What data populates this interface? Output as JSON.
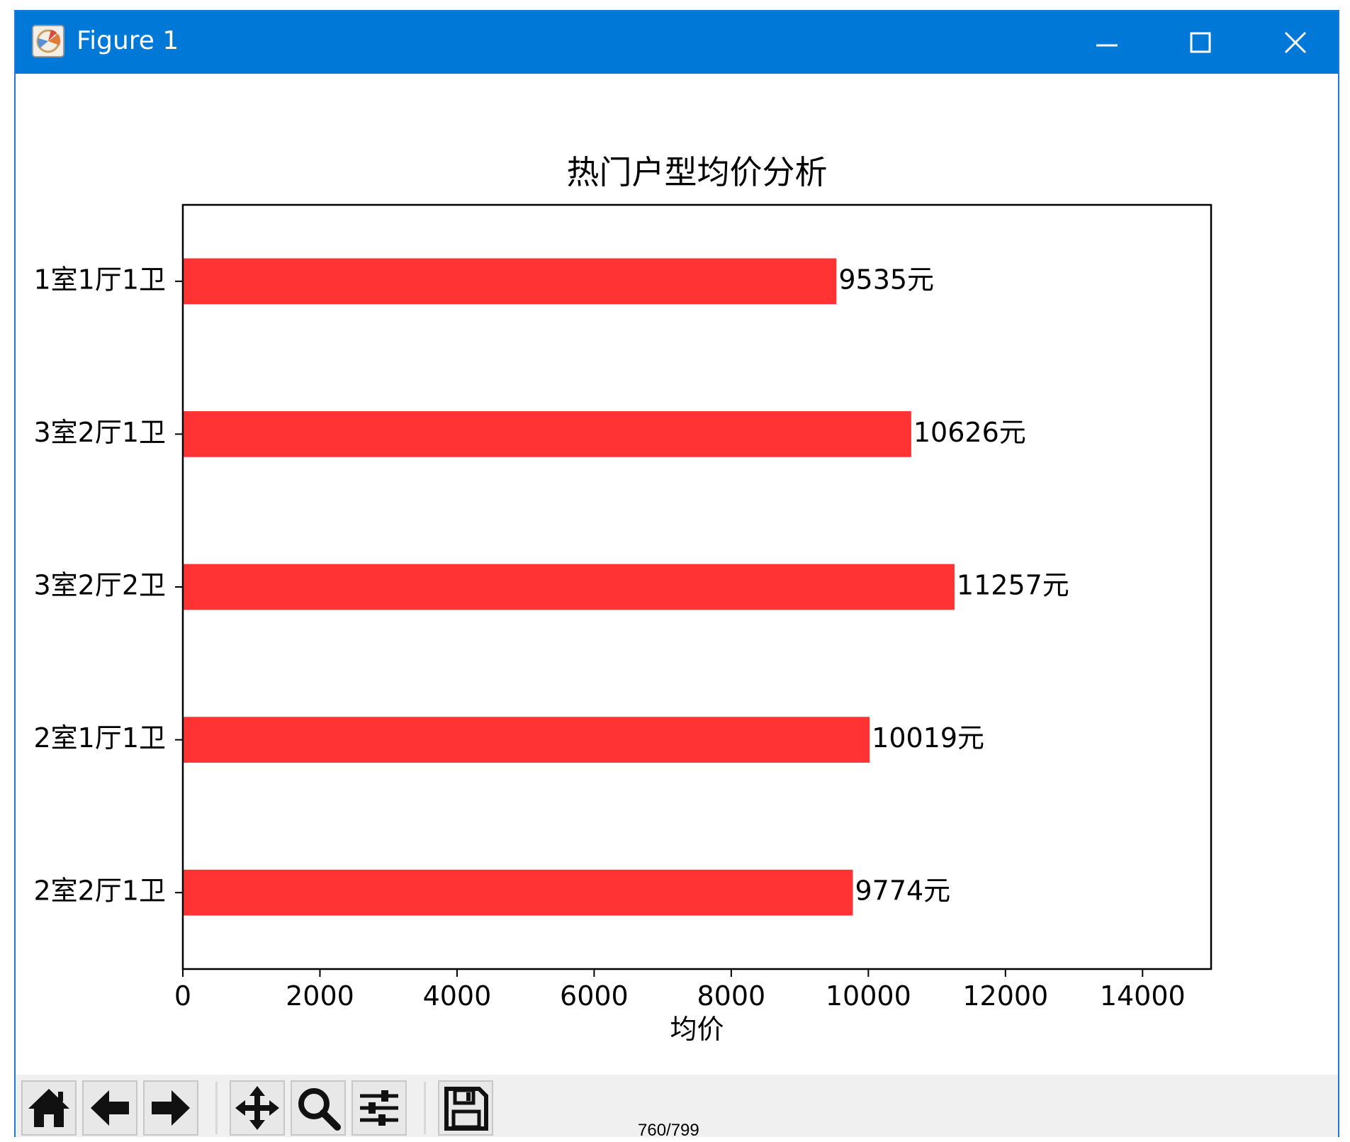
{
  "window": {
    "title": "Figure 1",
    "controls": {
      "minimize_icon": "minimize-icon",
      "maximize_icon": "maximize-icon",
      "close_icon": "close-icon"
    },
    "titlebar_color": "#0078d7"
  },
  "toolbar": {
    "buttons": [
      {
        "name": "home",
        "icon": "home-icon"
      },
      {
        "name": "back",
        "icon": "arrow-left-icon"
      },
      {
        "name": "forward",
        "icon": "arrow-right-icon"
      },
      {
        "name": "pan",
        "icon": "move-icon"
      },
      {
        "name": "zoom",
        "icon": "search-icon"
      },
      {
        "name": "configure",
        "icon": "sliders-icon"
      },
      {
        "name": "save",
        "icon": "floppy-disk-icon"
      }
    ]
  },
  "page_number": "760/799",
  "chart_data": {
    "type": "bar",
    "orientation": "horizontal",
    "title": "热门户型均价分析",
    "xlabel": "均价",
    "ylabel": "",
    "categories": [
      "1室1厅1卫",
      "3室2厅1卫",
      "3室2厅2卫",
      "2室1厅1卫",
      "2室2厅1卫"
    ],
    "values": [
      9535,
      10626,
      11257,
      10019,
      9774
    ],
    "data_labels": [
      "9535元",
      "10626元",
      "11257元",
      "10019元",
      "9774元"
    ],
    "xlim": [
      0,
      15000
    ],
    "xticks": [
      0,
      2000,
      4000,
      6000,
      8000,
      10000,
      12000,
      14000
    ],
    "grid": false,
    "bar_color": "#ff3333"
  }
}
